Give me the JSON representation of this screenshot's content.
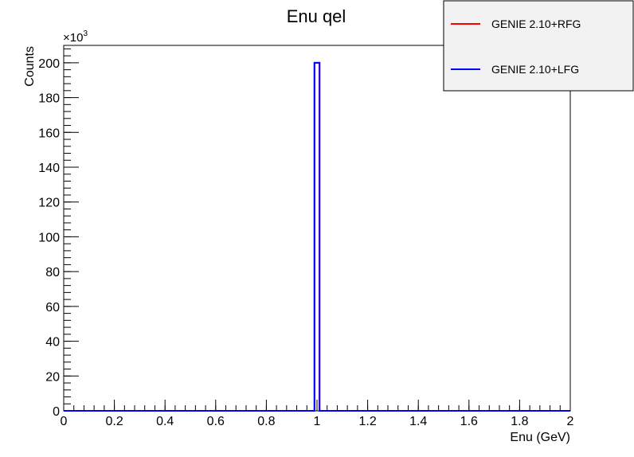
{
  "chart_data": {
    "type": "histogram",
    "title": "Enu qel",
    "xlabel": "Enu (GeV)",
    "ylabel": "Counts",
    "y_multiplier_label": "×10",
    "y_multiplier_exponent": "3",
    "xlim": [
      0,
      2
    ],
    "ylim": [
      0,
      210
    ],
    "x_ticks": [
      "0",
      "0.2",
      "0.4",
      "0.6",
      "0.8",
      "1",
      "1.2",
      "1.4",
      "1.6",
      "1.8",
      "2"
    ],
    "y_ticks": [
      "0",
      "20",
      "40",
      "60",
      "80",
      "100",
      "120",
      "140",
      "160",
      "180",
      "200"
    ],
    "legend_position": "top-right",
    "series": [
      {
        "name": "GENIE 2.10+RFG",
        "color": "#ff0000",
        "bin_edges": [
          0,
          0.99,
          1.01,
          2
        ],
        "values": [
          0,
          200,
          0
        ]
      },
      {
        "name": "GENIE 2.10+LFG",
        "color": "#0000ff",
        "bin_edges": [
          0,
          0.99,
          1.01,
          2
        ],
        "values": [
          0,
          200,
          0
        ]
      }
    ]
  }
}
